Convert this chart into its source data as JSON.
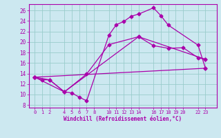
{
  "bg_color": "#cce8f0",
  "line_color": "#aa00aa",
  "grid_color": "#99cccc",
  "xlabel": "Windchill (Refroidissement éolien,°C)",
  "xtick_positions": [
    0,
    1,
    2,
    4,
    5,
    6,
    7,
    8,
    10,
    11,
    12,
    13,
    14,
    16,
    17,
    18,
    19,
    20,
    22,
    23
  ],
  "xtick_labels": [
    "0",
    "1",
    "2",
    "4",
    "5",
    "6",
    "7",
    "8",
    "10",
    "11",
    "12",
    "13",
    "14",
    "16",
    "17",
    "18",
    "19",
    "20",
    "22",
    "23"
  ],
  "ytick_positions": [
    8,
    10,
    12,
    14,
    16,
    18,
    20,
    22,
    24,
    26
  ],
  "ylim": [
    7.5,
    27.2
  ],
  "xlim": [
    -0.8,
    24.5
  ],
  "line1_x": [
    0,
    1,
    2,
    4,
    5,
    6,
    7,
    10,
    11,
    12,
    13,
    14,
    16,
    17,
    18,
    22,
    23
  ],
  "line1_y": [
    13.3,
    12.8,
    12.8,
    10.5,
    10.3,
    9.5,
    8.8,
    21.3,
    23.3,
    23.9,
    24.9,
    25.3,
    26.5,
    25.0,
    23.2,
    19.4,
    15.0
  ],
  "line2_x": [
    0,
    2,
    4,
    7,
    10,
    14,
    16,
    18,
    20,
    22,
    23
  ],
  "line2_y": [
    13.3,
    12.8,
    10.5,
    13.9,
    19.5,
    21.0,
    19.3,
    18.8,
    18.9,
    17.0,
    16.7
  ],
  "line3_x": [
    0,
    23
  ],
  "line3_y": [
    13.3,
    15.0
  ],
  "line4_x": [
    0,
    4,
    14,
    23
  ],
  "line4_y": [
    13.3,
    10.5,
    21.0,
    16.7
  ]
}
